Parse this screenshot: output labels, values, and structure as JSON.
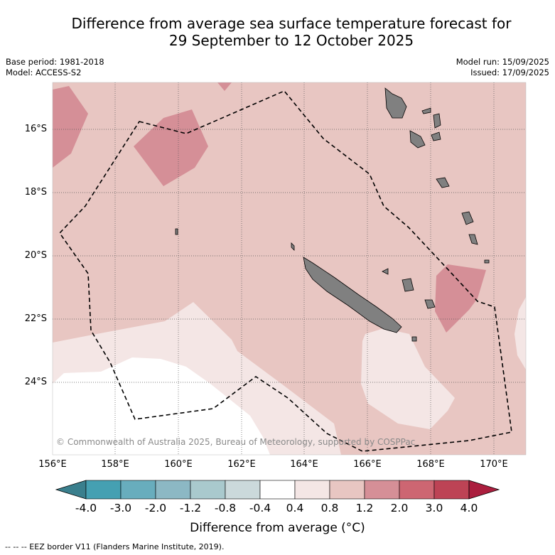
{
  "title_line1": "Difference from average sea surface temperature forecast for",
  "title_line2": "29 September to 12 October 2025",
  "base_period": "Base period: 1981-2018",
  "model": "Model: ACCESS-S2",
  "model_run": "Model run: 15/09/2025",
  "issued": "Issued: 17/09/2025",
  "copyright": "© Commonwealth of Australia 2025, Bureau of Meteorology, supported by COSPPac",
  "lat_labels": [
    "16°S",
    "18°S",
    "20°S",
    "22°S",
    "24°S"
  ],
  "lon_labels": [
    "156°E",
    "158°E",
    "160°E",
    "162°E",
    "164°E",
    "166°E",
    "168°E",
    "170°E"
  ],
  "colorbar": {
    "labels": [
      "-4.0",
      "-3.0",
      "-2.0",
      "-1.2",
      "-0.8",
      "-0.4",
      "0.4",
      "0.8",
      "1.2",
      "2.0",
      "3.0",
      "4.0"
    ],
    "colors": [
      "#3a7f8d",
      "#45a0b2",
      "#68adbd",
      "#8cb8c4",
      "#a9c9cd",
      "#cbd9db",
      "#ffffff",
      "#f4e6e5",
      "#e8c6c2",
      "#d58f97",
      "#cd6672",
      "#bd4355",
      "#ab1e3e"
    ],
    "title": "Difference from average (°C)"
  },
  "legend_footer": "-- -- -- EEZ border V11 (Flanders Marine Institute, 2019).",
  "map_colors": {
    "ocean_bg": "#e8c6c2",
    "warm_high": "#d58f97",
    "near_normal_warm": "#f4e6e5",
    "neutral": "#ffffff",
    "land": "#808080",
    "eez_border": "#000000"
  }
}
